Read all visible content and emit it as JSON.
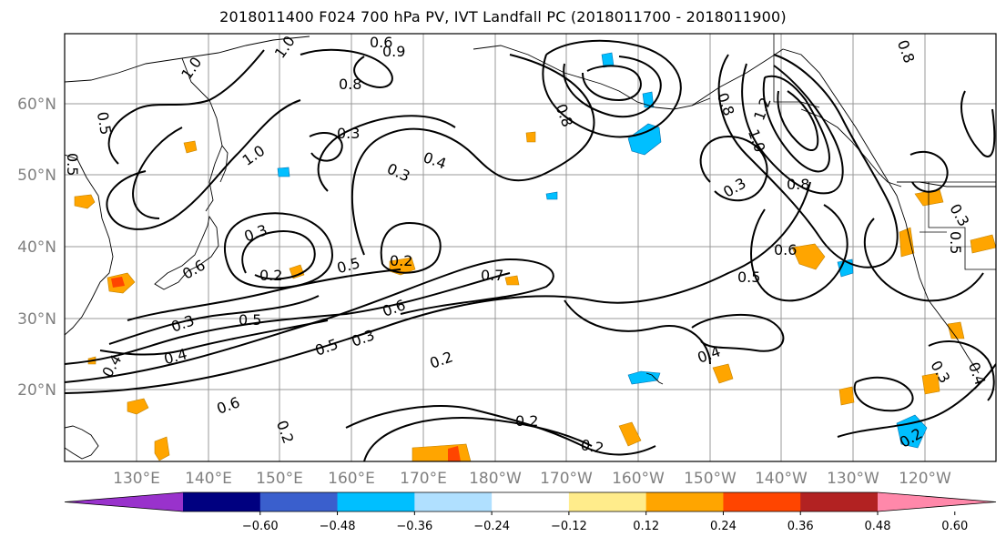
{
  "title": "2018011400 F024 700 hPa PV, IVT Landfall PC (2018011700 - 2018011900)",
  "lat_labels": [
    "60°N",
    "50°N",
    "40°N",
    "30°N",
    "20°N"
  ],
  "lon_labels": [
    "130°E",
    "140°E",
    "150°E",
    "160°E",
    "170°E",
    "180°W",
    "170°W",
    "160°W",
    "150°W",
    "140°W",
    "130°W",
    "120°W"
  ],
  "contour_labels": [
    "1.0",
    "1.0",
    "0.5",
    "0.6",
    "0.9",
    "0.8",
    "0.3",
    "0.8",
    "0.5",
    "1.0",
    "0.3",
    "0.4",
    "0.3",
    "0.6",
    "0.3",
    "0.2",
    "0.4",
    "0.5",
    "0.2",
    "0.5",
    "0.7",
    "0.6",
    "0.5",
    "0.3",
    "0.4",
    "0.6",
    "0.2",
    "0.2",
    "0.2",
    "0.2",
    "0.4",
    "0.3",
    "0.8",
    "0.5",
    "0.6",
    "1.0",
    "0.8",
    "1.2",
    "0.3",
    "0.2",
    "0.4",
    "0.3",
    "0.5",
    "0.8"
  ],
  "colorbar": {
    "ticks": [
      "−0.60",
      "−0.48",
      "−0.36",
      "−0.24",
      "−0.12",
      "0.12",
      "0.24",
      "0.36",
      "0.48",
      "0.60"
    ],
    "colors": [
      "#9932cc",
      "#000080",
      "#3a5fcd",
      "#00bfff",
      "#b0e0ff",
      "#ffffff",
      "#ffec8b",
      "#ffa500",
      "#ff4500",
      "#b22222",
      "#ff88aa"
    ]
  },
  "shading_colors": {
    "pos_light": "#ffa500",
    "pos_strong": "#ff4500",
    "neg_light": "#00bfff",
    "neg_pale": "#b0e0ff"
  }
}
